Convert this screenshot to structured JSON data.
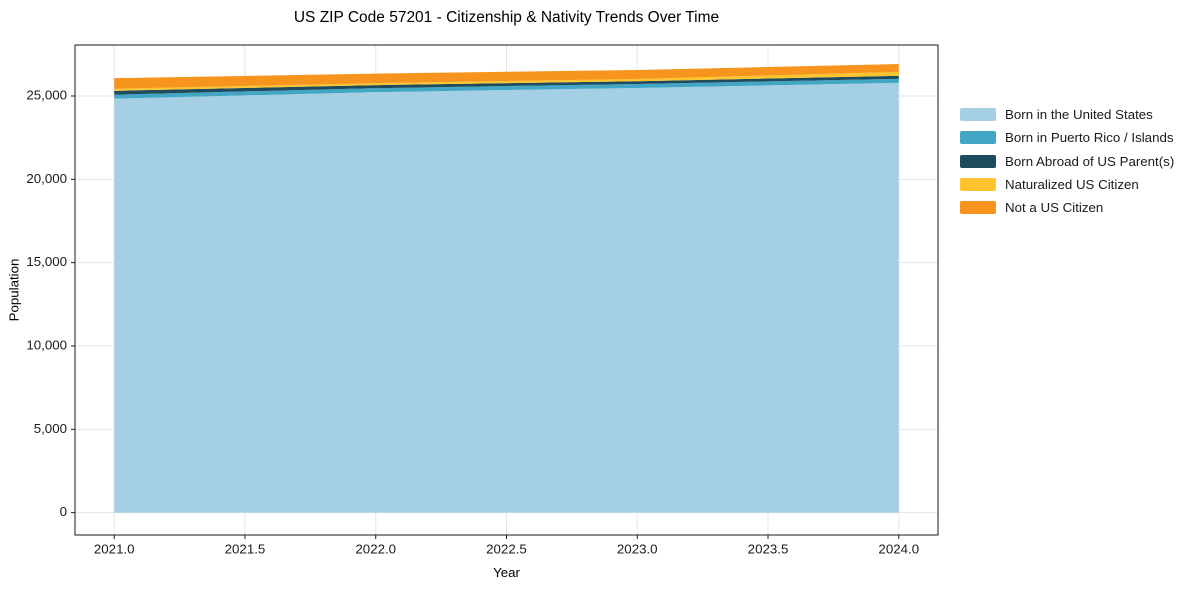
{
  "figure": {
    "background": "#ffffff"
  },
  "chart_data": {
    "type": "area",
    "stacked": true,
    "title": "US ZIP Code 57201 - Citizenship & Nativity Trends Over Time",
    "xlabel": "Year",
    "ylabel": "Population",
    "x": [
      2021,
      2022,
      2023,
      2024
    ],
    "series": [
      {
        "name": "Born in the United States",
        "color": "#A4CFE4",
        "values": [
          24840,
          25230,
          25480,
          25790
        ]
      },
      {
        "name": "Born in Puerto Rico / Islands",
        "color": "#41A7C5",
        "values": [
          240,
          240,
          240,
          240
        ]
      },
      {
        "name": "Born Abroad of US Parent(s)",
        "color": "#1F4B5F",
        "values": [
          230,
          185,
          165,
          180
        ]
      },
      {
        "name": "Naturalized US Citizen",
        "color": "#FDC42E",
        "values": [
          120,
          120,
          135,
          240
        ]
      },
      {
        "name": "Not a US Citizen",
        "color": "#F6941E",
        "values": [
          640,
          570,
          540,
          470
        ]
      }
    ],
    "totals": [
      26070,
      26345,
      26560,
      26920
    ],
    "xlim": [
      2020.85,
      2024.15
    ],
    "ylim": [
      -1340,
      28060
    ],
    "x_ticks": [
      2021.0,
      2021.5,
      2022.0,
      2022.5,
      2023.0,
      2023.5,
      2024.0
    ],
    "x_tick_labels": [
      "2021.0",
      "2021.5",
      "2022.0",
      "2022.5",
      "2023.0",
      "2023.5",
      "2024.0"
    ],
    "y_ticks": [
      0,
      5000,
      10000,
      15000,
      20000,
      25000
    ],
    "y_tick_labels": [
      "0",
      "5,000",
      "10,000",
      "15,000",
      "20,000",
      "25,000"
    ],
    "grid": true,
    "legend_position": "right"
  },
  "axes": {
    "spine_color": "#1a1a1a",
    "grid_color": "#e5e5e5",
    "tick_color": "#1a1a1a"
  }
}
